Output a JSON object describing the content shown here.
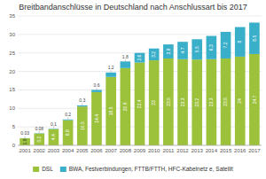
{
  "chart_data": {
    "type": "bar",
    "stacked": true,
    "title": "Breitbandanschlüsse in Deutschland nach Anschlussart bis 2017",
    "categories": [
      "2001",
      "2002",
      "2003",
      "2004",
      "2005",
      "2006",
      "2007",
      "2008",
      "2009",
      "2010",
      "2011",
      "2012",
      "2013",
      "2014",
      "2015",
      "2016",
      "2017"
    ],
    "series": [
      {
        "name": "DSL",
        "color": "#9CC13A",
        "values": [
          1.9,
          3.2,
          4.4,
          6.8,
          10.5,
          14.4,
          18.5,
          20.9,
          22.4,
          23.0,
          23.5,
          23.3,
          23.2,
          23.3,
          23.5,
          24.0,
          24.7
        ],
        "value_labels": [
          "1.9",
          "3.2",
          "4.4",
          "6.8",
          "10.5",
          "14.4",
          "18.5",
          "20.9",
          "22.4",
          "23",
          "23.5",
          "23.3",
          "23.2",
          "23.3",
          "23.5",
          "24",
          "24.7"
        ]
      },
      {
        "name": "BWA, Festverbindungen, FTTB/FTTH, HFC-Kabelnetz e, Satellit",
        "color": "#3AAFC9",
        "values": [
          0.03,
          0.08,
          0.1,
          0.2,
          0.3,
          0.6,
          1.2,
          1.8,
          2.6,
          3.2,
          3.8,
          4.7,
          5.5,
          6.3,
          7.2,
          8.0,
          8.5
        ],
        "value_labels": [
          "0.03",
          "0.08",
          "0.1",
          "0.2",
          "0.3",
          "0.6",
          "1.2",
          "1.8",
          "2.6",
          "3.2",
          "3.8",
          "4.7",
          "5.5",
          "6.3",
          "7.2",
          "8",
          "8.5"
        ]
      }
    ],
    "ylim": [
      0,
      35
    ],
    "yticks": [
      0,
      5,
      10,
      15,
      20,
      25,
      30,
      35
    ],
    "grid": true,
    "data_labels": true,
    "legend": "bottom"
  }
}
